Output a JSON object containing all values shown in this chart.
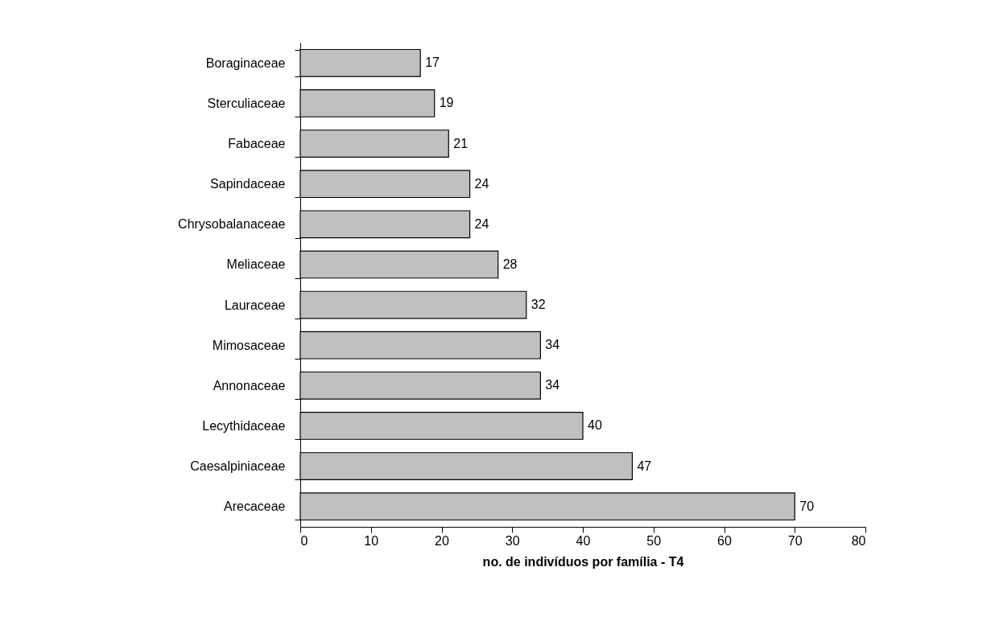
{
  "chart_data": {
    "type": "bar",
    "orientation": "horizontal",
    "xlabel": "no. de indivíduos por família - T4",
    "categories": [
      "Boraginaceae",
      "Sterculiaceae",
      "Fabaceae",
      "Sapindaceae",
      "Chrysobalanaceae",
      "Meliaceae",
      "Lauraceae",
      "Mimosaceae",
      "Annonaceae",
      "Lecythidaceae",
      "Caesalpiniaceae",
      "Arecaceae"
    ],
    "values": [
      17,
      19,
      21,
      24,
      24,
      28,
      32,
      34,
      34,
      40,
      47,
      70
    ],
    "color": "#c0c0c0",
    "xlim": [
      0,
      80
    ],
    "xticks": [
      0,
      10,
      20,
      30,
      40,
      50,
      60,
      70,
      80
    ],
    "grid": false,
    "data_labels": true
  }
}
